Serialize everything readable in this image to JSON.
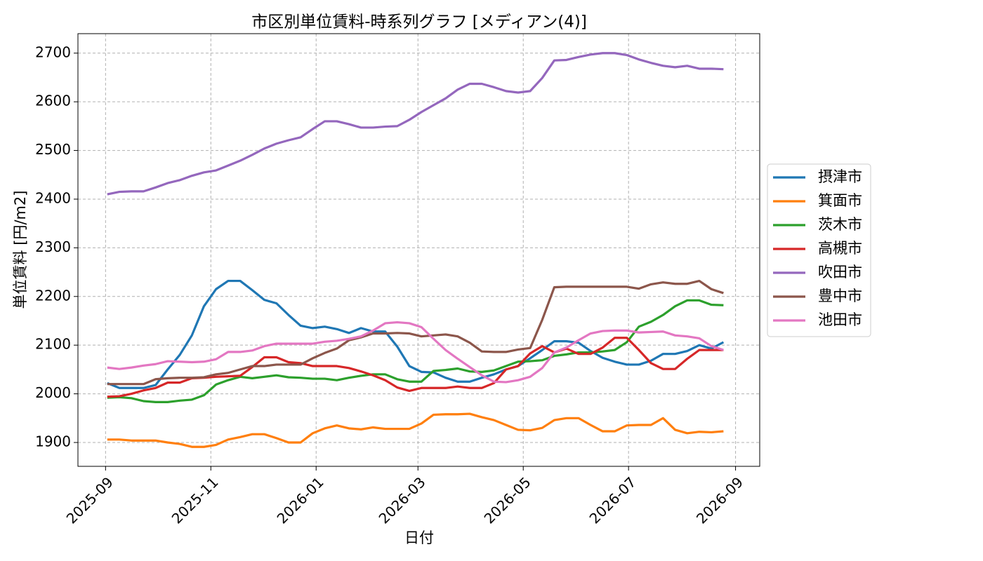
{
  "chart_data": {
    "type": "line",
    "title": "市区別単位賃料-時系列グラフ [メディアン(4)]",
    "xlabel": "日付",
    "ylabel": "単位賃料 [円/m2]",
    "x": [
      1,
      8,
      15,
      22,
      29,
      36,
      43,
      50,
      57,
      64,
      71,
      78,
      85,
      92,
      99,
      106,
      113,
      120,
      127,
      134,
      141,
      148,
      155,
      162,
      169,
      176,
      183,
      190,
      197,
      204,
      211,
      218,
      225,
      232,
      239,
      246,
      253,
      260,
      267,
      274,
      281,
      288,
      295,
      302,
      309,
      316,
      323,
      330,
      337,
      344,
      351,
      358
    ],
    "xlim": [
      -16,
      379
    ],
    "xticks": [
      {
        "value": 0,
        "label": "2025-09"
      },
      {
        "value": 61,
        "label": "2025-11"
      },
      {
        "value": 122,
        "label": "2026-01"
      },
      {
        "value": 181,
        "label": "2026-03"
      },
      {
        "value": 242,
        "label": "2026-05"
      },
      {
        "value": 303,
        "label": "2026-07"
      },
      {
        "value": 365,
        "label": "2026-09"
      }
    ],
    "ylim": [
      1851,
      2740
    ],
    "yticks": [
      1900,
      2000,
      2100,
      2200,
      2300,
      2400,
      2500,
      2600,
      2700
    ],
    "grid": true,
    "legend": "right",
    "series": [
      {
        "name": "摂津市",
        "color": "#1f77b4",
        "values": [
          2022,
          2012,
          2012,
          2012,
          2018,
          2050,
          2080,
          2120,
          2180,
          2215,
          2232,
          2232,
          2213,
          2193,
          2186,
          2162,
          2140,
          2135,
          2138,
          2133,
          2125,
          2135,
          2128,
          2128,
          2097,
          2057,
          2045,
          2044,
          2033,
          2025,
          2025,
          2033,
          2040,
          2050,
          2057,
          2073,
          2090,
          2108,
          2108,
          2105,
          2088,
          2074,
          2066,
          2060,
          2060,
          2068,
          2082,
          2082,
          2088,
          2100,
          2093,
          2106
        ]
      },
      {
        "name": "箕面市",
        "color": "#ff7f0e",
        "values": [
          1906,
          1906,
          1904,
          1904,
          1904,
          1900,
          1897,
          1891,
          1891,
          1895,
          1906,
          1911,
          1917,
          1917,
          1909,
          1900,
          1900,
          1919,
          1929,
          1935,
          1929,
          1927,
          1931,
          1928,
          1928,
          1928,
          1939,
          1957,
          1958,
          1958,
          1959,
          1952,
          1946,
          1936,
          1926,
          1925,
          1930,
          1946,
          1950,
          1950,
          1936,
          1923,
          1923,
          1935,
          1936,
          1936,
          1950,
          1926,
          1919,
          1922,
          1921,
          1923
        ]
      },
      {
        "name": "茨木市",
        "color": "#2ca02c",
        "values": [
          1992,
          1993,
          1991,
          1985,
          1983,
          1983,
          1986,
          1988,
          1997,
          2019,
          2028,
          2035,
          2032,
          2035,
          2038,
          2034,
          2033,
          2031,
          2031,
          2028,
          2033,
          2037,
          2040,
          2040,
          2030,
          2025,
          2025,
          2047,
          2049,
          2052,
          2046,
          2045,
          2048,
          2057,
          2066,
          2067,
          2069,
          2078,
          2081,
          2085,
          2085,
          2087,
          2090,
          2106,
          2138,
          2148,
          2162,
          2180,
          2192,
          2192,
          2183,
          2182
        ]
      },
      {
        "name": "高槻市",
        "color": "#d62728",
        "values": [
          1994,
          1995,
          2000,
          2007,
          2012,
          2023,
          2023,
          2032,
          2033,
          2035,
          2036,
          2037,
          2055,
          2075,
          2075,
          2065,
          2063,
          2057,
          2057,
          2057,
          2053,
          2046,
          2038,
          2028,
          2013,
          2006,
          2012,
          2012,
          2012,
          2015,
          2012,
          2012,
          2022,
          2050,
          2057,
          2083,
          2098,
          2085,
          2093,
          2082,
          2082,
          2095,
          2115,
          2115,
          2090,
          2063,
          2051,
          2051,
          2072,
          2090,
          2090,
          2090
        ]
      },
      {
        "name": "吹田市",
        "color": "#9467bd",
        "values": [
          2410,
          2415,
          2416,
          2416,
          2424,
          2433,
          2439,
          2448,
          2455,
          2459,
          2469,
          2479,
          2491,
          2504,
          2514,
          2521,
          2527,
          2544,
          2560,
          2560,
          2554,
          2547,
          2547,
          2549,
          2550,
          2563,
          2579,
          2593,
          2607,
          2625,
          2637,
          2637,
          2630,
          2622,
          2619,
          2622,
          2649,
          2685,
          2686,
          2692,
          2697,
          2700,
          2700,
          2696,
          2687,
          2680,
          2674,
          2671,
          2674,
          2668,
          2668,
          2667
        ]
      },
      {
        "name": "豊中市",
        "color": "#8c564b",
        "values": [
          2020,
          2020,
          2020,
          2020,
          2030,
          2032,
          2033,
          2033,
          2034,
          2040,
          2043,
          2050,
          2057,
          2057,
          2060,
          2060,
          2060,
          2073,
          2084,
          2093,
          2110,
          2116,
          2124,
          2124,
          2125,
          2124,
          2118,
          2120,
          2122,
          2118,
          2105,
          2087,
          2086,
          2086,
          2091,
          2094,
          2152,
          2219,
          2220,
          2220,
          2220,
          2220,
          2220,
          2220,
          2216,
          2225,
          2229,
          2226,
          2226,
          2232,
          2215,
          2207
        ]
      },
      {
        "name": "池田市",
        "color": "#e377c2",
        "values": [
          2054,
          2051,
          2054,
          2058,
          2061,
          2067,
          2066,
          2065,
          2066,
          2071,
          2086,
          2086,
          2089,
          2098,
          2103,
          2103,
          2103,
          2103,
          2107,
          2109,
          2113,
          2118,
          2130,
          2145,
          2147,
          2145,
          2137,
          2113,
          2090,
          2072,
          2055,
          2038,
          2025,
          2024,
          2028,
          2035,
          2053,
          2085,
          2095,
          2110,
          2124,
          2129,
          2130,
          2130,
          2126,
          2127,
          2128,
          2120,
          2118,
          2114,
          2098,
          2090
        ]
      }
    ]
  }
}
